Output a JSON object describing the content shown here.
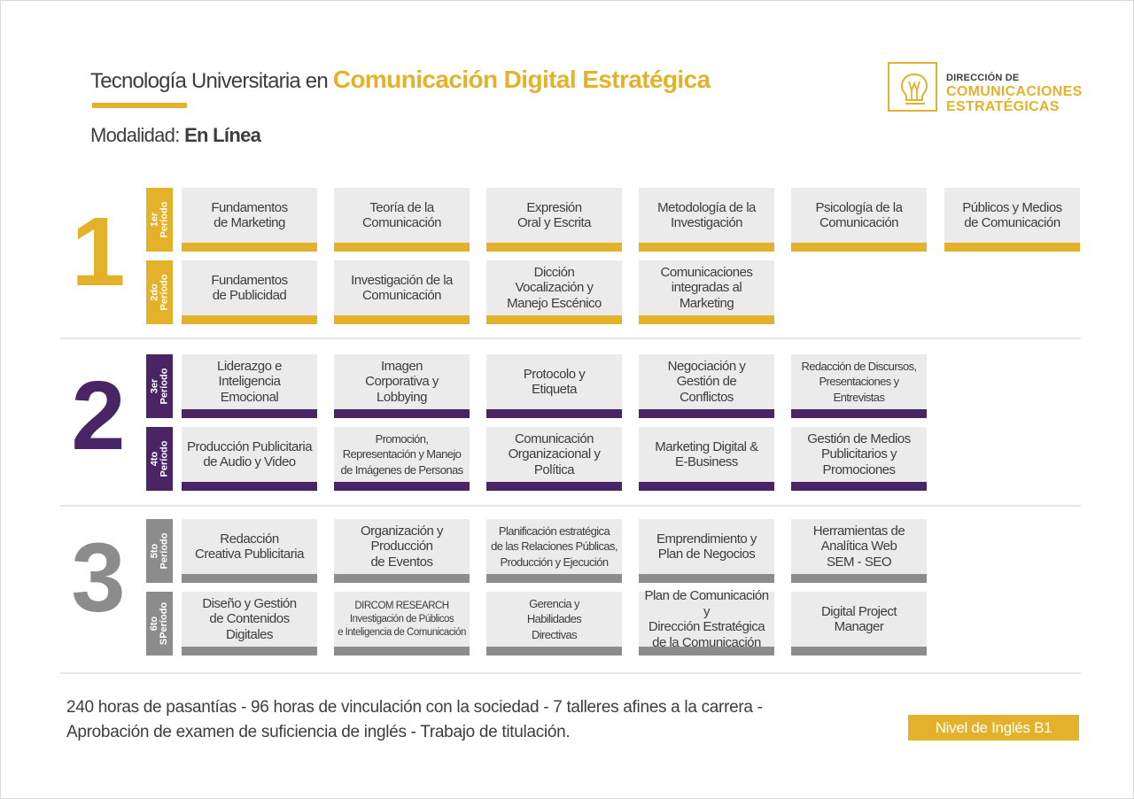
{
  "header": {
    "title_prefix": "Tecnología Universitaria en",
    "title_accent": "Comunicación Digital Estratégica",
    "modality_label": "Modalidad:",
    "modality_value": "En Línea"
  },
  "logo": {
    "line_small": "DIRECCIÓN DE",
    "line_big_1": "COMUNICACIONES",
    "line_big_2": "ESTRATÉGICAS",
    "icon": "lightbulb-icon"
  },
  "colors": {
    "year1": "#e3b22a",
    "year2": "#4a2565",
    "year3": "#8c8c8c",
    "text": "#3d3d3d",
    "card_bg": "#ebebeb"
  },
  "years": [
    {
      "number": "1",
      "periods": [
        {
          "label": "1er\nPeríodo",
          "courses": [
            "Fundamentos\nde Marketing",
            "Teoría de la\nComunicación",
            "Expresión\nOral y Escrita",
            "Metodología de la\nInvestigación",
            "Psicología de la\nComunicación",
            "Públicos y Medios\nde Comunicación"
          ]
        },
        {
          "label": "2do\nPeríodo",
          "courses": [
            "Fundamentos\nde Publicidad",
            "Investigación de la\nComunicación",
            "Dicción\nVocalización y\nManejo Escénico",
            "Comunicaciones\nintegradas al\nMarketing"
          ]
        }
      ]
    },
    {
      "number": "2",
      "periods": [
        {
          "label": "3er\nPeríodo",
          "courses": [
            "Liderazgo e\nInteligencia\nEmocional",
            "Imagen\nCorporativa y\nLobbying",
            "Protocolo y\nEtiqueta",
            "Negociación y\nGestión de\nConflictos",
            "Redacción de Discursos,\nPresentaciones y\nEntrevistas"
          ]
        },
        {
          "label": "4to\nPeríodo",
          "courses": [
            "Producción Publicitaria\nde Audio y Video",
            "Promoción,\nRepresentación y Manejo\nde Imágenes de Personas",
            "Comunicación\nOrganizacional y\nPolítica",
            "Marketing Digital &\nE-Business",
            "Gestión de Medios\nPublicitarios y\nPromociones"
          ]
        }
      ]
    },
    {
      "number": "3",
      "periods": [
        {
          "label": "5to\nPeríodo",
          "courses": [
            "Redacción\nCreativa Publicitaria",
            "Organización y\nProducción\nde Eventos",
            "Planificación estratégica\nde las Relaciones Públicas,\nProducción y Ejecución",
            "Emprendimiento y\nPlan de Negocios",
            "Herramientas de\nAnalítica Web\nSEM - SEO"
          ]
        },
        {
          "label": "6to\nSPeríodo",
          "courses": [
            "Diseño y Gestión\nde Contenidos\nDigitales",
            "DIRCOM RESEARCH\nInvestigación de Públicos\ne Inteligencia de Comunicación",
            "Gerencia y\nHabilidades\nDirectivas",
            "Plan de Comunicación y\nDirección Estratégica\nde la Comunicación",
            "Digital Project\nManager"
          ]
        }
      ]
    }
  ],
  "footer": {
    "line1": "240 horas de pasantías - 96 horas de vinculación con la sociedad - 7 talleres afines a la carrera -",
    "line2": "Aprobación de examen de suficiencia de inglés - Trabajo de titulación.",
    "english_level": "Nivel de Inglés B1"
  }
}
